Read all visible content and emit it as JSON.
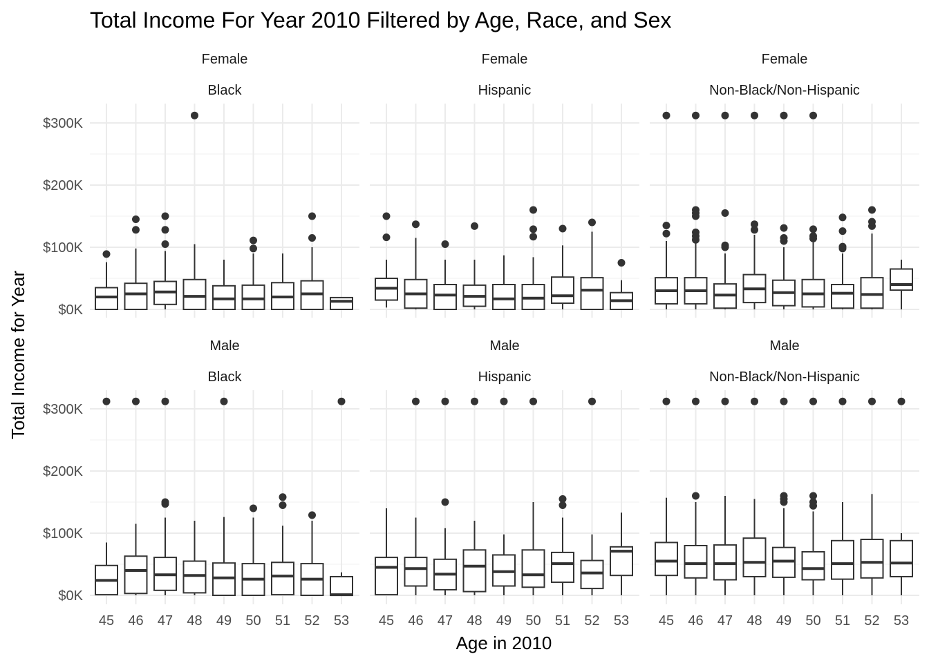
{
  "chart_data": {
    "type": "boxplot",
    "title": "Total Income For Year 2010 Filtered by Age, Race, and Sex",
    "xlabel": "Age in 2010",
    "ylabel": "Total Income for Year",
    "x_categories": [
      "45",
      "46",
      "47",
      "48",
      "49",
      "50",
      "51",
      "52",
      "53"
    ],
    "y_ticks": [
      {
        "value": 0,
        "label": "$0K"
      },
      {
        "value": 100000,
        "label": "$100K"
      },
      {
        "value": 200000,
        "label": "$200K"
      },
      {
        "value": 300000,
        "label": "$300K"
      }
    ],
    "ylim": [
      0,
      330000
    ],
    "grid": true,
    "panels": [
      {
        "sex": "Female",
        "race": "Black",
        "boxes": [
          {
            "age": "45",
            "min": 0,
            "q1": 0,
            "median": 20000,
            "q3": 35000,
            "max": 76000,
            "outliers": [
              89000
            ]
          },
          {
            "age": "46",
            "min": 0,
            "q1": 0,
            "median": 25000,
            "q3": 42000,
            "max": 98000,
            "outliers": [
              128000,
              145000
            ]
          },
          {
            "age": "47",
            "min": 0,
            "q1": 8000,
            "median": 28000,
            "q3": 45000,
            "max": 94000,
            "outliers": [
              105000,
              128000,
              150000
            ]
          },
          {
            "age": "48",
            "min": 0,
            "q1": 0,
            "median": 21000,
            "q3": 48000,
            "max": 105000,
            "outliers": [
              312000
            ]
          },
          {
            "age": "49",
            "min": 0,
            "q1": 0,
            "median": 17000,
            "q3": 38000,
            "max": 80000,
            "outliers": []
          },
          {
            "age": "50",
            "min": 0,
            "q1": 0,
            "median": 17000,
            "q3": 39000,
            "max": 90000,
            "outliers": [
              98000,
              111000
            ]
          },
          {
            "age": "51",
            "min": 0,
            "q1": 0,
            "median": 20000,
            "q3": 43000,
            "max": 90000,
            "outliers": []
          },
          {
            "age": "52",
            "min": 0,
            "q1": 0,
            "median": 25000,
            "q3": 46000,
            "max": 100000,
            "outliers": [
              115000,
              150000
            ]
          },
          {
            "age": "53",
            "min": 0,
            "q1": 0,
            "median": 13000,
            "q3": 19000,
            "max": 19000,
            "outliers": []
          }
        ]
      },
      {
        "sex": "Female",
        "race": "Hispanic",
        "boxes": [
          {
            "age": "45",
            "min": 3000,
            "q1": 15000,
            "median": 34000,
            "q3": 50000,
            "max": 80000,
            "outliers": [
              116000,
              150000
            ]
          },
          {
            "age": "46",
            "min": 0,
            "q1": 2000,
            "median": 25000,
            "q3": 48000,
            "max": 115000,
            "outliers": [
              137000
            ]
          },
          {
            "age": "47",
            "min": 0,
            "q1": 0,
            "median": 23000,
            "q3": 40000,
            "max": 80000,
            "outliers": [
              105000
            ]
          },
          {
            "age": "48",
            "min": 0,
            "q1": 5000,
            "median": 21000,
            "q3": 39000,
            "max": 80000,
            "outliers": [
              134000
            ]
          },
          {
            "age": "49",
            "min": 0,
            "q1": 0,
            "median": 17000,
            "q3": 40000,
            "max": 87000,
            "outliers": []
          },
          {
            "age": "50",
            "min": 0,
            "q1": 0,
            "median": 18000,
            "q3": 40000,
            "max": 84000,
            "outliers": [
              117000,
              129000,
              160000
            ]
          },
          {
            "age": "51",
            "min": 0,
            "q1": 10000,
            "median": 22000,
            "q3": 52000,
            "max": 103000,
            "outliers": [
              130000
            ]
          },
          {
            "age": "52",
            "min": 0,
            "q1": 0,
            "median": 31000,
            "q3": 51000,
            "max": 125000,
            "outliers": [
              140000
            ]
          },
          {
            "age": "53",
            "min": 0,
            "q1": 0,
            "median": 14000,
            "q3": 27000,
            "max": 47000,
            "outliers": [
              75000
            ]
          }
        ]
      },
      {
        "sex": "Female",
        "race": "Non-Black/Non-Hispanic",
        "boxes": [
          {
            "age": "45",
            "min": 0,
            "q1": 9000,
            "median": 30000,
            "q3": 51000,
            "max": 110000,
            "outliers": [
              122000,
              135000,
              312000
            ]
          },
          {
            "age": "46",
            "min": 0,
            "q1": 9000,
            "median": 30000,
            "q3": 51000,
            "max": 108000,
            "outliers": [
              112000,
              118000,
              124000,
              150000,
              155000,
              160000,
              312000
            ]
          },
          {
            "age": "47",
            "min": 0,
            "q1": 2000,
            "median": 23000,
            "q3": 41000,
            "max": 90000,
            "outliers": [
              100000,
              103000,
              155000,
              312000
            ]
          },
          {
            "age": "48",
            "min": 0,
            "q1": 11000,
            "median": 33000,
            "q3": 56000,
            "max": 120000,
            "outliers": [
              128000,
              137000,
              312000
            ]
          },
          {
            "age": "49",
            "min": 0,
            "q1": 6000,
            "median": 27000,
            "q3": 47000,
            "max": 100000,
            "outliers": [
              110000,
              115000,
              131000,
              312000
            ]
          },
          {
            "age": "50",
            "min": 0,
            "q1": 4000,
            "median": 25000,
            "q3": 48000,
            "max": 108000,
            "outliers": [
              114000,
              118000,
              129000,
              312000
            ]
          },
          {
            "age": "51",
            "min": 0,
            "q1": 2000,
            "median": 26000,
            "q3": 40000,
            "max": 90000,
            "outliers": [
              98000,
              101000,
              126000,
              148000
            ]
          },
          {
            "age": "52",
            "min": 0,
            "q1": 2000,
            "median": 24000,
            "q3": 51000,
            "max": 122000,
            "outliers": [
              134000,
              141000,
              160000
            ]
          },
          {
            "age": "53",
            "min": 0,
            "q1": 31000,
            "median": 40000,
            "q3": 65000,
            "max": 80000,
            "outliers": []
          }
        ]
      },
      {
        "sex": "Male",
        "race": "Black",
        "boxes": [
          {
            "age": "45",
            "min": 0,
            "q1": 1000,
            "median": 24000,
            "q3": 48000,
            "max": 85000,
            "outliers": [
              312000
            ]
          },
          {
            "age": "46",
            "min": 0,
            "q1": 3000,
            "median": 40000,
            "q3": 63000,
            "max": 115000,
            "outliers": [
              312000
            ]
          },
          {
            "age": "47",
            "min": 0,
            "q1": 8000,
            "median": 33000,
            "q3": 61000,
            "max": 125000,
            "outliers": [
              147000,
              150000,
              312000
            ]
          },
          {
            "age": "48",
            "min": 0,
            "q1": 4000,
            "median": 32000,
            "q3": 55000,
            "max": 120000,
            "outliers": []
          },
          {
            "age": "49",
            "min": 0,
            "q1": 0,
            "median": 28000,
            "q3": 52000,
            "max": 126000,
            "outliers": [
              312000
            ]
          },
          {
            "age": "50",
            "min": 0,
            "q1": 0,
            "median": 26000,
            "q3": 51000,
            "max": 125000,
            "outliers": [
              140000
            ]
          },
          {
            "age": "51",
            "min": 0,
            "q1": 1000,
            "median": 31000,
            "q3": 53000,
            "max": 112000,
            "outliers": [
              145000,
              158000
            ]
          },
          {
            "age": "52",
            "min": 0,
            "q1": 0,
            "median": 26000,
            "q3": 51000,
            "max": 120000,
            "outliers": [
              129000
            ]
          },
          {
            "age": "53",
            "min": 0,
            "q1": 0,
            "median": 1000,
            "q3": 30000,
            "max": 37000,
            "outliers": [
              312000
            ]
          }
        ]
      },
      {
        "sex": "Male",
        "race": "Hispanic",
        "boxes": [
          {
            "age": "45",
            "min": 0,
            "q1": 1000,
            "median": 45000,
            "q3": 61000,
            "max": 140000,
            "outliers": []
          },
          {
            "age": "46",
            "min": 0,
            "q1": 15000,
            "median": 43000,
            "q3": 61000,
            "max": 125000,
            "outliers": [
              312000
            ]
          },
          {
            "age": "47",
            "min": 0,
            "q1": 9000,
            "median": 34000,
            "q3": 58000,
            "max": 108000,
            "outliers": [
              150000,
              312000
            ]
          },
          {
            "age": "48",
            "min": 0,
            "q1": 6000,
            "median": 47000,
            "q3": 73000,
            "max": 120000,
            "outliers": [
              312000
            ]
          },
          {
            "age": "49",
            "min": 0,
            "q1": 15000,
            "median": 38000,
            "q3": 65000,
            "max": 98000,
            "outliers": [
              312000
            ]
          },
          {
            "age": "50",
            "min": 0,
            "q1": 13000,
            "median": 33000,
            "q3": 73000,
            "max": 150000,
            "outliers": [
              312000
            ]
          },
          {
            "age": "51",
            "min": 0,
            "q1": 21000,
            "median": 51000,
            "q3": 69000,
            "max": 125000,
            "outliers": [
              145000,
              155000
            ]
          },
          {
            "age": "52",
            "min": 0,
            "q1": 11000,
            "median": 36000,
            "q3": 56000,
            "max": 98000,
            "outliers": [
              312000
            ]
          },
          {
            "age": "53",
            "min": 0,
            "q1": 32000,
            "median": 71000,
            "q3": 78000,
            "max": 133000,
            "outliers": []
          }
        ]
      },
      {
        "sex": "Male",
        "race": "Non-Black/Non-Hispanic",
        "boxes": [
          {
            "age": "45",
            "min": 0,
            "q1": 32000,
            "median": 55000,
            "q3": 85000,
            "max": 157000,
            "outliers": [
              312000
            ]
          },
          {
            "age": "46",
            "min": 0,
            "q1": 28000,
            "median": 51000,
            "q3": 80000,
            "max": 150000,
            "outliers": [
              160000,
              312000
            ]
          },
          {
            "age": "47",
            "min": 0,
            "q1": 25000,
            "median": 51000,
            "q3": 81000,
            "max": 160000,
            "outliers": [
              312000
            ]
          },
          {
            "age": "48",
            "min": 0,
            "q1": 30000,
            "median": 53000,
            "q3": 92000,
            "max": 155000,
            "outliers": [
              312000
            ]
          },
          {
            "age": "49",
            "min": 0,
            "q1": 29000,
            "median": 55000,
            "q3": 77000,
            "max": 140000,
            "outliers": [
              150000,
              155000,
              160000,
              312000
            ]
          },
          {
            "age": "50",
            "min": 0,
            "q1": 25000,
            "median": 43000,
            "q3": 70000,
            "max": 135000,
            "outliers": [
              144000,
              150000,
              160000,
              312000
            ]
          },
          {
            "age": "51",
            "min": 0,
            "q1": 26000,
            "median": 51000,
            "q3": 88000,
            "max": 150000,
            "outliers": [
              312000
            ]
          },
          {
            "age": "52",
            "min": 0,
            "q1": 28000,
            "median": 53000,
            "q3": 90000,
            "max": 163000,
            "outliers": [
              312000
            ]
          },
          {
            "age": "53",
            "min": 0,
            "q1": 30000,
            "median": 52000,
            "q3": 88000,
            "max": 100000,
            "outliers": [
              312000
            ]
          }
        ]
      }
    ]
  }
}
